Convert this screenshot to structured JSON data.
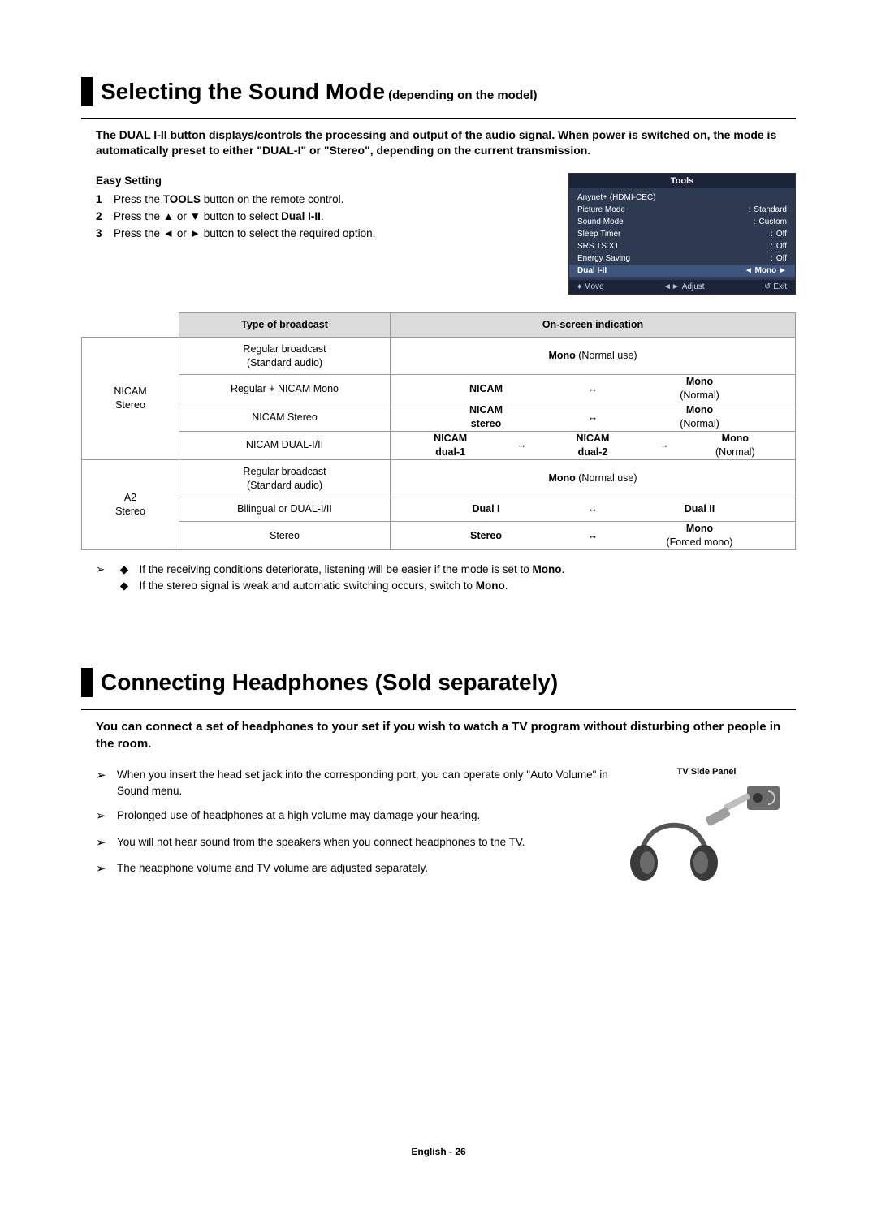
{
  "section1": {
    "title_main": "Selecting the Sound Mode",
    "title_sub": " (depending on the model)",
    "intro": "The DUAL I-II button displays/controls the processing and output of the audio signal. When power is switched on, the mode is automatically preset to either \"DUAL-I\" or \"Stereo\", depending on the current transmission.",
    "easy_setting": "Easy Setting",
    "steps": [
      {
        "n": "1",
        "pre": "Press the ",
        "bold": "TOOLS",
        "post": " button on the remote control."
      },
      {
        "n": "2",
        "pre": "Press the ▲ or ▼ button to select ",
        "bold": "Dual I-II",
        "post": "."
      },
      {
        "n": "3",
        "pre": "Press the ◄ or ► button to select the required option.",
        "bold": "",
        "post": ""
      }
    ],
    "tools": {
      "title": "Tools",
      "rows": [
        {
          "l": "Anynet+ (HDMI-CEC)",
          "r": ""
        },
        {
          "l": "Picture Mode",
          "r": "Standard"
        },
        {
          "l": "Sound Mode",
          "r": "Custom"
        },
        {
          "l": "Sleep Timer",
          "r": "Off"
        },
        {
          "l": "SRS TS XT",
          "r": "Off"
        },
        {
          "l": "Energy Saving",
          "r": "Off"
        }
      ],
      "sel": {
        "l": "Dual I-II",
        "r": "Mono"
      },
      "footer": {
        "move": "Move",
        "adjust": "Adjust",
        "exit": "Exit"
      }
    },
    "table": {
      "head": {
        "c1": "",
        "c2": "Type of broadcast",
        "c3": "On-screen indication"
      },
      "groups": [
        {
          "label": "NICAM\nStereo",
          "rows": [
            {
              "type": "Regular broadcast\n(Standard audio)",
              "ind": [
                {
                  "b": "Mono",
                  "n": " (Normal use)"
                }
              ]
            },
            {
              "type": "Regular + NICAM Mono",
              "ind": [
                {
                  "b": "NICAM"
                },
                {
                  "a": "↔"
                },
                {
                  "b": "Mono",
                  "n2": "(Normal)"
                }
              ]
            },
            {
              "type": "NICAM Stereo",
              "ind": [
                {
                  "b": "NICAM",
                  "b2": "stereo"
                },
                {
                  "a": "↔"
                },
                {
                  "b": "Mono",
                  "n2": "(Normal)"
                }
              ]
            },
            {
              "type": "NICAM DUAL-I/II",
              "ind": [
                {
                  "b": "NICAM",
                  "b2": "dual-1"
                },
                {
                  "a": "→"
                },
                {
                  "b": "NICAM",
                  "b2": "dual-2"
                },
                {
                  "a": "→"
                },
                {
                  "b": "Mono",
                  "n2": "(Normal)"
                }
              ]
            }
          ]
        },
        {
          "label": "A2\nStereo",
          "rows": [
            {
              "type": "Regular broadcast\n(Standard audio)",
              "ind": [
                {
                  "b": "Mono",
                  "n": " (Normal use)"
                }
              ]
            },
            {
              "type": "Bilingual or DUAL-I/II",
              "ind": [
                {
                  "b": "Dual I"
                },
                {
                  "a": "↔"
                },
                {
                  "b": "Dual II"
                }
              ]
            },
            {
              "type": "Stereo",
              "ind": [
                {
                  "b": "Stereo"
                },
                {
                  "a": "↔"
                },
                {
                  "b": "Mono",
                  "n2": "(Forced mono)"
                }
              ]
            }
          ]
        }
      ]
    },
    "notes": [
      "If the receiving conditions deteriorate, listening will be easier if the mode is set to <b>Mono</b>.",
      "If the stereo signal is weak and automatic switching occurs, switch to <b>Mono</b>."
    ]
  },
  "section2": {
    "title": "Connecting Headphones (Sold separately)",
    "intro": "You can connect a set of headphones to your set if you wish to watch a TV program without disturbing other people in the room.",
    "items": [
      "When you insert the head set jack into the corresponding port, you can operate only \"Auto Volume\" in Sound menu.",
      "Prolonged use of headphones at a high volume may damage your hearing.",
      "You will not hear sound from the speakers when you connect headphones to the TV.",
      "The headphone volume and TV volume are adjusted separately."
    ],
    "panel_label": "TV Side Panel"
  },
  "footer": {
    "lang": "English - ",
    "page": "26"
  }
}
